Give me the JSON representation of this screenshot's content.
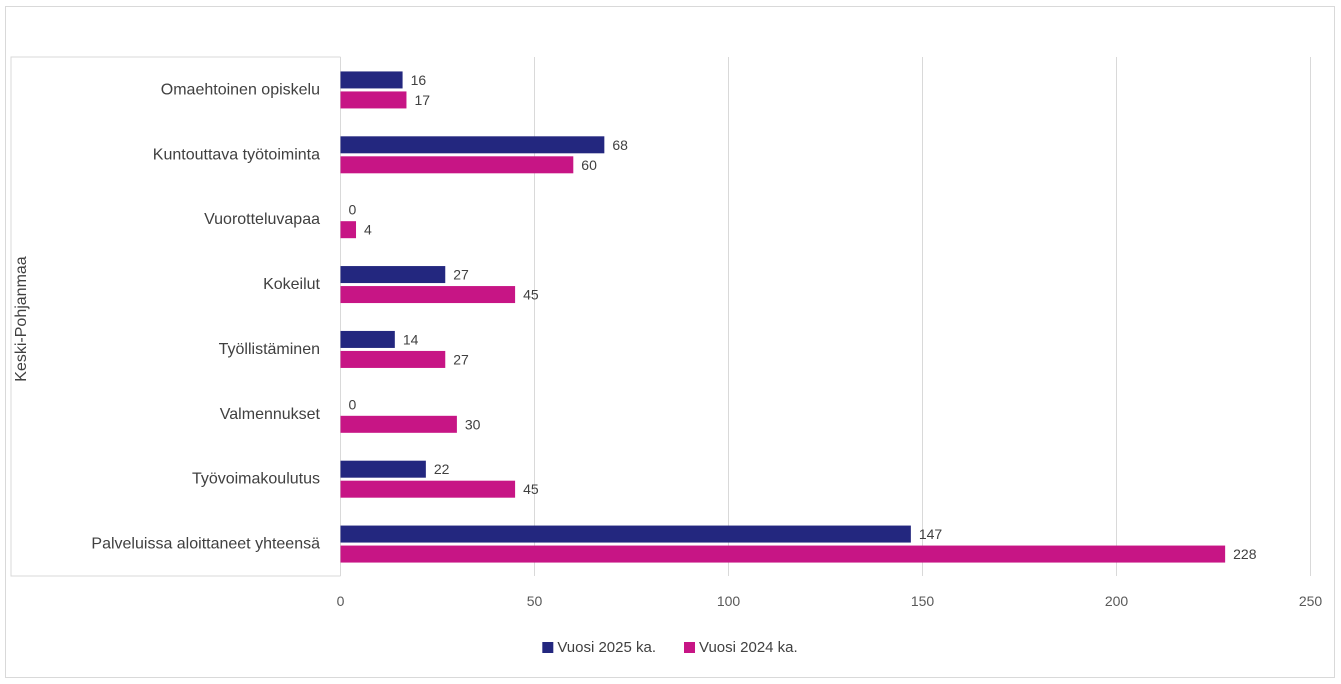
{
  "chart_data": {
    "type": "bar",
    "orientation": "horizontal",
    "group_label": "Keski-Pohjanmaa",
    "categories": [
      "Omaehtoinen opiskelu",
      "Kuntouttava työtoiminta",
      "Vuorotteluvapaa",
      "Kokeilut",
      "Työllistäminen",
      "Valmennukset",
      "Työvoimakoulutus",
      "Palveluissa aloittaneet yhteensä"
    ],
    "series": [
      {
        "name": "Vuosi 2025 ka.",
        "color": "#23277f",
        "values": [
          16,
          68,
          0,
          27,
          14,
          0,
          22,
          147
        ]
      },
      {
        "name": "Vuosi 2024 ka.",
        "color": "#c71585",
        "values": [
          17,
          60,
          4,
          45,
          27,
          30,
          45,
          228
        ]
      }
    ],
    "x_ticks": [
      "0",
      "50",
      "100",
      "150",
      "200",
      "250"
    ],
    "xlim": [
      0,
      250
    ],
    "grid": "vertical",
    "legend_position": "bottom",
    "title": "",
    "xlabel": "",
    "ylabel": ""
  }
}
